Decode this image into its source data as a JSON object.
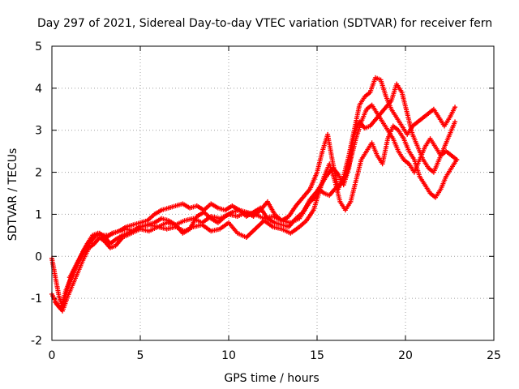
{
  "chart_data": {
    "type": "scatter",
    "title": "Day 297 of 2021, Sidereal Day-to-day VTEC variation (SDTVAR) for receiver fern",
    "xlabel": "GPS time / hours",
    "ylabel": "SDTVAR / TECUs",
    "xlim": [
      0,
      25
    ],
    "ylim": [
      -2,
      5
    ],
    "x_ticks": [
      0,
      5,
      10,
      15,
      20,
      25
    ],
    "y_ticks": [
      -2,
      -1,
      0,
      1,
      2,
      3,
      4,
      5
    ],
    "grid": true,
    "marker": "+",
    "series": [
      {
        "name": "SDTVAR",
        "color": "#ff0000",
        "tracks": [
          {
            "x": [
              0.0,
              0.2,
              0.4,
              0.6,
              0.8,
              1.0,
              1.2,
              1.5,
              1.8,
              2.1,
              2.4,
              2.7,
              3.0,
              3.3,
              3.6,
              4.0,
              4.5,
              5.0,
              5.5,
              6.0,
              6.5,
              7.0,
              7.5,
              8.0,
              8.5,
              9.0,
              9.5,
              10.0,
              10.5,
              11.0,
              11.5,
              12.0,
              12.5,
              13.0,
              13.5,
              14.0,
              14.3,
              14.6,
              14.9,
              15.1,
              15.4,
              15.7,
              16.0,
              16.3,
              16.6,
              16.9,
              17.2,
              17.5,
              17.8,
              18.1,
              18.4,
              18.7,
              19.0,
              19.3,
              19.6,
              19.9,
              20.2,
              20.5,
              20.8,
              21.1,
              21.4,
              21.7,
              22.0,
              22.3,
              22.6,
              22.9
            ],
            "y": [
              -0.05,
              -0.5,
              -0.95,
              -1.2,
              -0.9,
              -0.6,
              -0.35,
              -0.1,
              0.15,
              0.35,
              0.5,
              0.55,
              0.45,
              0.3,
              0.4,
              0.5,
              0.6,
              0.7,
              0.75,
              0.7,
              0.8,
              0.75,
              0.85,
              0.9,
              0.8,
              0.95,
              0.9,
              1.0,
              0.95,
              1.05,
              1.0,
              0.9,
              0.95,
              0.85,
              0.8,
              0.9,
              1.1,
              1.3,
              1.4,
              1.6,
              1.5,
              1.45,
              1.6,
              1.7,
              1.9,
              2.3,
              2.8,
              3.2,
              3.5,
              3.6,
              3.4,
              3.2,
              3.0,
              2.8,
              2.5,
              2.3,
              2.2,
              2.0,
              2.3,
              2.6,
              2.8,
              2.6,
              2.4,
              2.5,
              2.4,
              2.3
            ]
          },
          {
            "x": [
              0.0,
              0.3,
              0.6,
              0.9,
              1.2,
              1.5,
              1.8,
              2.1,
              2.4,
              2.7,
              3.0,
              3.3,
              3.6,
              4.0,
              4.5,
              5.0,
              5.5,
              6.0,
              6.5,
              7.0,
              7.5,
              8.0,
              8.5,
              9.0,
              9.5,
              10.0,
              10.5,
              11.0,
              11.5,
              12.0,
              12.5,
              13.0,
              13.5,
              14.0,
              14.4,
              14.8,
              15.1,
              15.4,
              15.7,
              16.0,
              16.3,
              16.6,
              16.9,
              17.2,
              17.5,
              17.8,
              18.1,
              18.4,
              18.7,
              19.0,
              19.3,
              19.6,
              19.9,
              20.2,
              20.5,
              20.8,
              21.1,
              21.4,
              21.7,
              22.0,
              22.3,
              22.6,
              22.9
            ],
            "y": [
              -0.9,
              -1.15,
              -1.3,
              -0.95,
              -0.65,
              -0.35,
              -0.05,
              0.2,
              0.3,
              0.45,
              0.35,
              0.2,
              0.25,
              0.45,
              0.55,
              0.65,
              0.6,
              0.7,
              0.65,
              0.7,
              0.6,
              0.7,
              0.75,
              0.6,
              0.65,
              0.8,
              0.55,
              0.45,
              0.65,
              0.85,
              0.7,
              0.65,
              0.55,
              0.7,
              0.85,
              1.1,
              1.5,
              1.9,
              2.2,
              1.8,
              1.3,
              1.1,
              1.3,
              1.8,
              2.3,
              2.5,
              2.7,
              2.4,
              2.2,
              2.8,
              3.1,
              3.0,
              2.8,
              2.5,
              2.3,
              1.9,
              1.7,
              1.5,
              1.4,
              1.6,
              1.9,
              2.1,
              2.3
            ]
          },
          {
            "x": [
              0.2,
              0.5,
              0.8,
              1.1,
              1.4,
              1.7,
              2.0,
              2.3,
              2.6,
              2.9,
              3.2,
              3.5,
              3.8,
              4.2,
              4.6,
              5.0,
              5.4,
              5.8,
              6.2,
              6.6,
              7.0,
              7.4,
              7.8,
              8.2,
              8.6,
              9.0,
              9.4,
              9.8,
              10.2,
              10.6,
              11.0,
              11.4,
              11.8,
              12.2,
              12.6,
              13.0,
              13.4,
              13.8,
              14.2,
              14.6,
              15.0,
              15.3,
              15.6,
              15.9,
              16.2,
              16.5,
              16.8,
              17.1,
              17.4,
              17.7,
              18.0,
              18.3,
              18.6,
              18.9,
              19.2,
              19.5,
              19.8,
              20.1,
              20.4,
              20.7,
              21.0,
              21.3,
              21.6,
              21.9,
              22.2,
              22.5,
              22.8
            ],
            "y": [
              -1.1,
              -1.25,
              -0.8,
              -0.5,
              -0.2,
              0.05,
              0.3,
              0.5,
              0.55,
              0.5,
              0.5,
              0.55,
              0.6,
              0.7,
              0.75,
              0.8,
              0.85,
              1.0,
              1.1,
              1.15,
              1.2,
              1.25,
              1.15,
              1.2,
              1.1,
              1.25,
              1.15,
              1.1,
              1.2,
              1.1,
              1.05,
              0.95,
              1.1,
              1.3,
              1.0,
              0.85,
              0.95,
              1.2,
              1.4,
              1.6,
              2.0,
              2.5,
              2.9,
              2.2,
              1.6,
              1.9,
              2.4,
              3.0,
              3.6,
              3.8,
              3.9,
              4.25,
              4.2,
              3.8,
              3.5,
              3.3,
              3.1,
              2.9,
              3.1,
              3.2,
              3.3,
              3.4,
              3.5,
              3.3,
              3.1,
              3.3,
              3.55
            ]
          },
          {
            "x": [
              1.0,
              1.3,
              1.6,
              1.9,
              2.2,
              2.5,
              2.8,
              3.1,
              3.4,
              3.8,
              4.2,
              4.6,
              5.0,
              5.4,
              5.8,
              6.2,
              6.6,
              7.0,
              7.4,
              7.8,
              8.2,
              8.6,
              9.0,
              9.4,
              9.8,
              10.2,
              10.6,
              11.0,
              11.4,
              11.8,
              12.2,
              12.6,
              13.0,
              13.4,
              13.8,
              14.2,
              14.6,
              15.0,
              15.3,
              15.6,
              15.9,
              16.2,
              16.5,
              16.8,
              17.1,
              17.4,
              17.7,
              18.0,
              18.3,
              18.6,
              18.9,
              19.2,
              19.5,
              19.8,
              20.1,
              20.4,
              20.7,
              21.0,
              21.3,
              21.6,
              21.9,
              22.2,
              22.5,
              22.8
            ],
            "y": [
              -0.5,
              -0.3,
              -0.05,
              0.15,
              0.35,
              0.5,
              0.5,
              0.45,
              0.55,
              0.6,
              0.65,
              0.6,
              0.7,
              0.75,
              0.8,
              0.9,
              0.85,
              0.75,
              0.55,
              0.65,
              0.95,
              1.05,
              0.9,
              0.8,
              0.95,
              1.05,
              1.1,
              0.95,
              1.05,
              1.15,
              0.9,
              0.8,
              0.75,
              0.7,
              0.9,
              1.05,
              1.35,
              1.55,
              1.75,
              1.95,
              2.1,
              1.95,
              1.7,
              2.1,
              2.9,
              3.2,
              3.05,
              3.1,
              3.25,
              3.4,
              3.55,
              3.7,
              4.1,
              3.9,
              3.4,
              2.9,
              2.6,
              2.3,
              2.1,
              2.0,
              2.3,
              2.6,
              2.9,
              3.2
            ]
          }
        ]
      }
    ]
  }
}
